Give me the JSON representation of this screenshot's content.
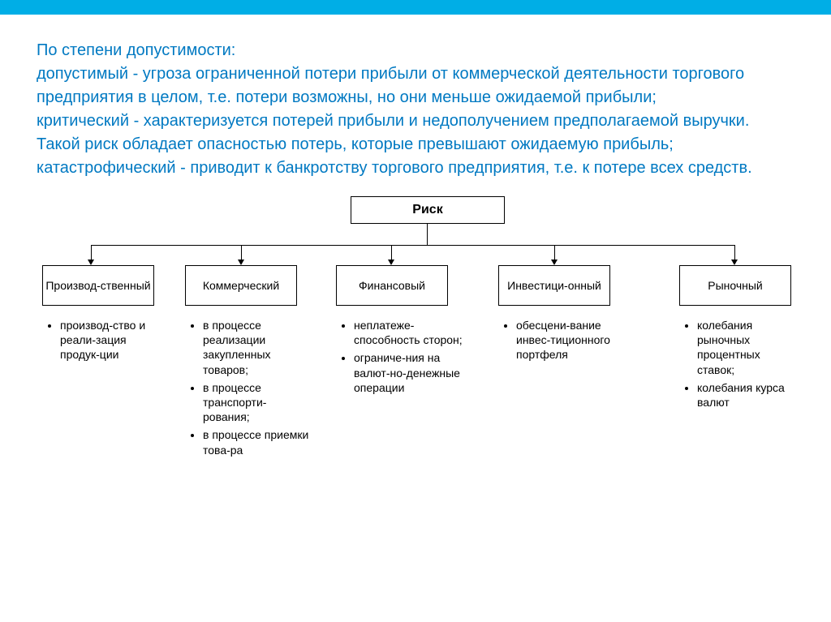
{
  "colors": {
    "bar": "#00aee6",
    "text_blue": "#0079c2",
    "border": "#000000",
    "background": "#ffffff"
  },
  "intro": "По степени допустимости:\nдопустимый - угроза ограниченной потери прибыли от коммерческой деятельности торгового предприятия в целом, т.е. потери возможны, но они меньше ожидаемой прибыли;\nкритический - характеризуется потерей прибыли и недополучением предполагаемой выручки. Такой риск обладает опасностью потерь, которые превышают ожидаемую прибыль;\nкатастрофический - приводит к банкротству торгового предприятия, т.е. к потере всех средств.",
  "diagram": {
    "type": "tree",
    "root": "Риск",
    "children": [
      {
        "label": "Производ-ственный",
        "bullets": [
          "производ-ство и реали-зация продук-ции"
        ]
      },
      {
        "label": "Коммерческий",
        "bullets": [
          "в процессе реализации закупленных товаров;",
          "в процессе транспорти-рования;",
          "в процессе приемки това-ра"
        ]
      },
      {
        "label": "Финансовый",
        "bullets": [
          "неплатеже-способность сторон;",
          "ограниче-ния на валют-но-денежные операции"
        ]
      },
      {
        "label": "Инвестици-онный",
        "bullets": [
          "обесцени-вание инвес-тиционного портфеля"
        ]
      },
      {
        "label": "Рыночный",
        "bullets": [
          "колебания рыночных процентных ставок;",
          "колебания курса валют"
        ]
      }
    ]
  }
}
